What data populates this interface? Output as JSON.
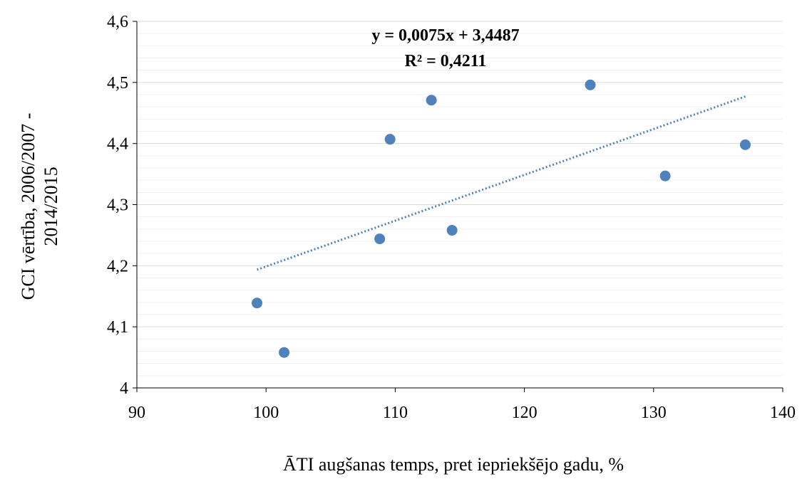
{
  "chart_data": {
    "type": "scatter",
    "x_label": "ĀTI augšanas temps, pret iepriekšējo gadu, %",
    "y_label_lines": [
      "GCI vērtība, 2006/2007 -",
      "2014/2015"
    ],
    "xlim": [
      90,
      140
    ],
    "ylim": [
      4,
      4.6
    ],
    "x_ticks": [
      90,
      100,
      110,
      120,
      130,
      140
    ],
    "x_tick_labels": [
      "90",
      "100",
      "110",
      "120",
      "130",
      "140"
    ],
    "y_ticks": [
      4,
      4.1,
      4.2,
      4.3,
      4.4,
      4.5,
      4.6
    ],
    "y_tick_labels": [
      "4",
      "4,1",
      "4,2",
      "4,3",
      "4,4",
      "4,5",
      "4,6"
    ],
    "y_minor_step": 0.02,
    "grid": {
      "major_y": true,
      "minor_y": true,
      "x": false
    },
    "points": [
      {
        "x": 99.3,
        "y": 4.139
      },
      {
        "x": 101.4,
        "y": 4.058
      },
      {
        "x": 108.8,
        "y": 4.244
      },
      {
        "x": 109.6,
        "y": 4.407
      },
      {
        "x": 112.8,
        "y": 4.471
      },
      {
        "x": 114.4,
        "y": 4.258
      },
      {
        "x": 125.1,
        "y": 4.496
      },
      {
        "x": 130.9,
        "y": 4.347
      },
      {
        "x": 137.1,
        "y": 4.398
      }
    ],
    "trendline": {
      "type": "linear",
      "slope": 0.0075,
      "intercept": 3.4487,
      "x_range": [
        99.3,
        137.1
      ],
      "equation_label": "y = 0,0075x + 3,4487",
      "r2_label": "R² = 0,4211"
    },
    "colors": {
      "marker": "#4f81bd",
      "trendline": "#4f81bd",
      "major_grid": "#d9d9d9",
      "minor_grid": "#f0f0f0",
      "axis": "#000000"
    }
  }
}
